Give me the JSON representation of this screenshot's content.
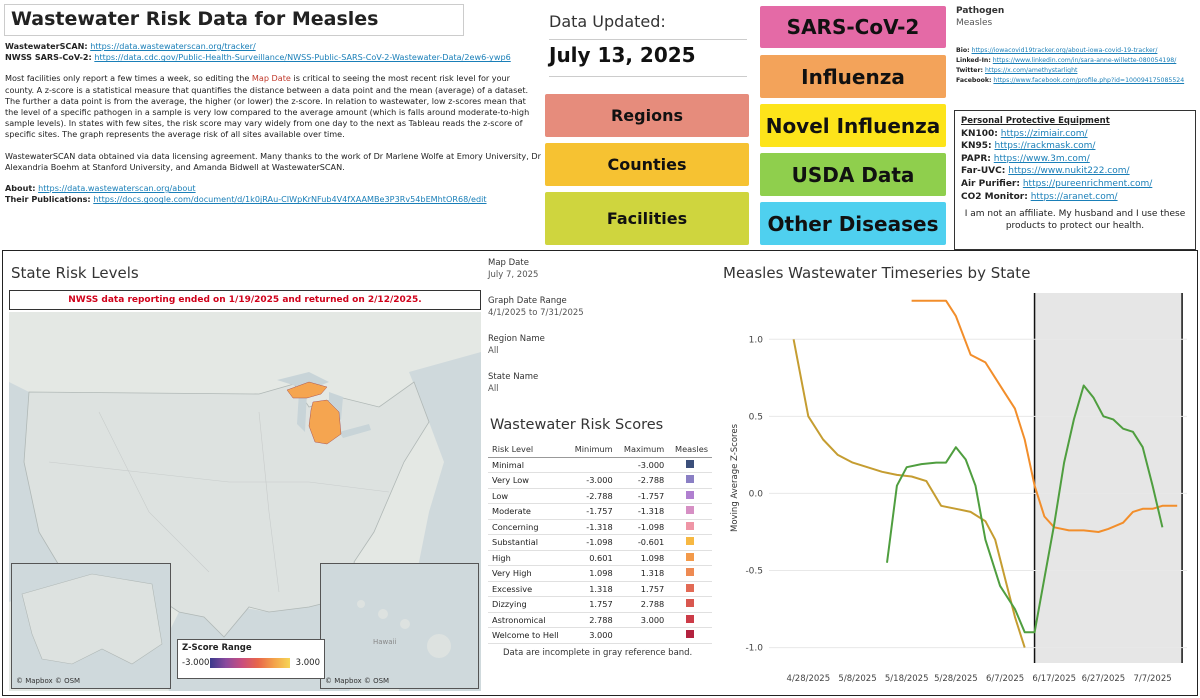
{
  "header": {
    "title": "Wastewater Risk Data for  Measles"
  },
  "links": {
    "wastewaterscan_label": "WastewaterSCAN:",
    "wastewaterscan_url": "https://data.wastewaterscan.org/tracker/",
    "nwss_label": "NWSS SARS-CoV-2:",
    "nwss_url": "https://data.cdc.gov/Public-Health-Surveillance/NWSS-Public-SARS-CoV-2-Wastewater-Data/2ew6-ywp6",
    "about_label": "About:",
    "about_url": "https://data.wastewaterscan.org/about",
    "pubs_label": "Their Publications:",
    "pubs_url": "https://docs.google.com/document/d/1k0jRAu-CIWpKrNFub4V4fXAAMBe3P3Rv54bEMhtOR68/edit"
  },
  "description": {
    "p1_pre": "Most facilities only report a few times a week, so editing the ",
    "p1_map_date": "Map Date",
    "p1_post": " is critical to seeing the most recent risk level for your county. A z-score is a statistical measure that quantifies the distance between a data point and the mean (average) of a dataset. The further a data point is from the average, the higher (or lower) the z-score. In relation to wastewater, low z-scores mean that the level of a specific pathogen in a sample is very low compared to the average amount (which is falls around moderate-to-high sample levels). In states with few sites, the risk score may vary widely from one day to the next as Tableau reads the z-score of specific sites. The graph represents the average risk of all sites available over time.",
    "p2": "WastewaterSCAN data obtained via data licensing agreement. Many thanks to the work of Dr Marlene Wolfe at Emory University, Dr Alexandria Boehm at Stanford University, and Amanda Bidwell at WastewaterSCAN."
  },
  "updated": {
    "label": "Data Updated:",
    "date": "July 13, 2025"
  },
  "nav_buttons": {
    "regions": "Regions",
    "counties": "Counties",
    "facilities": "Facilities",
    "sars": "SARS-CoV-2",
    "influenza": "Influenza",
    "novel_influenza": "Novel Influenza",
    "usda": "USDA Data",
    "other": "Other Diseases"
  },
  "colors": {
    "regions": "#e68c7c",
    "counties": "#f6c232",
    "facilities": "#cfd53e",
    "sars": "#e46aa6",
    "influenza": "#f3a35a",
    "novel_influenza": "#fde41a",
    "usda": "#8fcf4d",
    "other": "#4fd0ef",
    "michigan": "#f5a550",
    "orange_series": "#f28e2b",
    "gold_series": "#c59d31",
    "green_series": "#4f9e3f"
  },
  "pathogen": {
    "label": "Pathogen",
    "value": "Measles"
  },
  "socials": {
    "bio_label": "Bio:",
    "bio_url": "https://iowacovid19tracker.org/about-iowa-covid-19-tracker/",
    "linkedin_label": "Linked-In:",
    "linkedin_url": "https://www.linkedin.com/in/sara-anne-willette-080054198/",
    "twitter_label": "Twitter:",
    "twitter_url": "https://x.com/amethystarlight",
    "facebook_label": "Facebook:",
    "facebook_url": "https://www.facebook.com/profile.php?id=100094175085524"
  },
  "ppe": {
    "title": "Personal Protective Equipment",
    "items": [
      {
        "label": "KN100:",
        "url": "https://zimiair.com/"
      },
      {
        "label": "KN95:",
        "url": "https://rackmask.com/"
      },
      {
        "label": "PAPR:",
        "url": "https://www.3m.com/"
      },
      {
        "label": "Far-UVC:",
        "url": "https://www.nukit222.com/"
      },
      {
        "label": "Air Purifier:",
        "url": "https://pureenrichment.com/"
      },
      {
        "label": "CO2 Monitor:",
        "url": "https://aranet.com/"
      }
    ],
    "note": "I am not an affiliate. My husband and I use these products to protect our health."
  },
  "map": {
    "title": "State Risk Levels",
    "banner": "NWSS data reporting ended on 1/19/2025 and returned on 2/12/2025.",
    "attribution": "© Mapbox © OSM",
    "legend_title": "Z-Score Range",
    "legend_min": "-3.000",
    "legend_max": "3.000",
    "inset_label": "Hawaii"
  },
  "filters": [
    {
      "label": "Map Date",
      "value": "July 7, 2025"
    },
    {
      "label": "Graph Date Range",
      "value": "4/1/2025 to 7/31/2025"
    },
    {
      "label": "Region Name",
      "value": "All"
    },
    {
      "label": "State Name",
      "value": "All"
    }
  ],
  "scores": {
    "title": "Wastewater Risk Scores",
    "headers": [
      "Risk Level",
      "Minimum",
      "Maximum",
      "Measles"
    ],
    "rows": [
      {
        "level": "Minimal",
        "min": "",
        "max": "-3.000",
        "color": "#3b4f7a"
      },
      {
        "level": "Very Low",
        "min": "-3.000",
        "max": "-2.788",
        "color": "#8a7fc4"
      },
      {
        "level": "Low",
        "min": "-2.788",
        "max": "-1.757",
        "color": "#b07fd0"
      },
      {
        "level": "Moderate",
        "min": "-1.757",
        "max": "-1.318",
        "color": "#d68fc4"
      },
      {
        "level": "Concerning",
        "min": "-1.318",
        "max": "-1.098",
        "color": "#ef95a6"
      },
      {
        "level": "Substantial",
        "min": "-1.098",
        "max": "-0.601",
        "color": "#f7b842"
      },
      {
        "level": "High",
        "min": "0.601",
        "max": "1.098",
        "color": "#f39a4a"
      },
      {
        "level": "Very High",
        "min": "1.098",
        "max": "1.318",
        "color": "#ee8a52"
      },
      {
        "level": "Excessive",
        "min": "1.318",
        "max": "1.757",
        "color": "#e26a55"
      },
      {
        "level": "Dizzying",
        "min": "1.757",
        "max": "2.788",
        "color": "#d9574f"
      },
      {
        "level": "Astronomical",
        "min": "2.788",
        "max": "3.000",
        "color": "#cc3b47"
      },
      {
        "level": "Welcome to Hell",
        "min": "3.000",
        "max": "",
        "color": "#b3223f"
      }
    ],
    "note": "Data are incomplete in gray reference band."
  },
  "chart_data": {
    "type": "line",
    "title": "Measles Wastewater Timeseries by State",
    "xlabel": "",
    "ylabel": "Moving Average Z-Scores",
    "ylim": [
      -1.1,
      1.3
    ],
    "xlim": [
      "2025-04-20",
      "2025-07-14"
    ],
    "x_ticks": [
      "4/28/2025",
      "5/8/2025",
      "5/18/2025",
      "5/28/2025",
      "6/7/2025",
      "6/17/2025",
      "6/27/2025",
      "7/7/2025"
    ],
    "y_ticks": [
      1.0,
      0.5,
      0.0,
      -0.5,
      -1.0
    ],
    "y_tick_labels": [
      "1.0",
      "0.5",
      "0.0",
      "-0.5",
      "-1.0"
    ],
    "reference_band": {
      "start": "2025-06-13",
      "end": "2025-07-13"
    },
    "grid": true,
    "legend": "none",
    "series": [
      {
        "color": "#f28e2b",
        "points": [
          [
            "2025-05-19",
            1.25
          ],
          [
            "2025-05-22",
            1.25
          ],
          [
            "2025-05-25",
            1.25
          ],
          [
            "2025-05-26",
            1.25
          ],
          [
            "2025-05-28",
            1.15
          ],
          [
            "2025-05-31",
            0.9
          ],
          [
            "2025-06-03",
            0.85
          ],
          [
            "2025-06-05",
            0.75
          ],
          [
            "2025-06-07",
            0.65
          ],
          [
            "2025-06-09",
            0.55
          ],
          [
            "2025-06-11",
            0.35
          ],
          [
            "2025-06-13",
            0.05
          ],
          [
            "2025-06-15",
            -0.15
          ],
          [
            "2025-06-17",
            -0.22
          ],
          [
            "2025-06-20",
            -0.24
          ],
          [
            "2025-06-23",
            -0.24
          ],
          [
            "2025-06-26",
            -0.25
          ],
          [
            "2025-06-28",
            -0.23
          ],
          [
            "2025-07-01",
            -0.19
          ],
          [
            "2025-07-03",
            -0.12
          ],
          [
            "2025-07-05",
            -0.1
          ],
          [
            "2025-07-07",
            -0.1
          ],
          [
            "2025-07-09",
            -0.08
          ],
          [
            "2025-07-12",
            -0.08
          ]
        ]
      },
      {
        "color": "#c59d31",
        "points": [
          [
            "2025-04-25",
            1.0
          ],
          [
            "2025-04-28",
            0.5
          ],
          [
            "2025-05-01",
            0.35
          ],
          [
            "2025-05-04",
            0.25
          ],
          [
            "2025-05-07",
            0.2
          ],
          [
            "2025-05-10",
            0.17
          ],
          [
            "2025-05-13",
            0.14
          ],
          [
            "2025-05-16",
            0.12
          ],
          [
            "2025-05-19",
            0.11
          ],
          [
            "2025-05-22",
            0.08
          ],
          [
            "2025-05-25",
            -0.08
          ],
          [
            "2025-05-28",
            -0.1
          ],
          [
            "2025-05-31",
            -0.12
          ],
          [
            "2025-06-03",
            -0.18
          ],
          [
            "2025-06-05",
            -0.3
          ],
          [
            "2025-06-07",
            -0.55
          ],
          [
            "2025-06-09",
            -0.8
          ],
          [
            "2025-06-11",
            -1.0
          ]
        ]
      },
      {
        "color": "#4f9e3f",
        "points": [
          [
            "2025-05-14",
            -0.45
          ],
          [
            "2025-05-16",
            0.05
          ],
          [
            "2025-05-18",
            0.17
          ],
          [
            "2025-05-21",
            0.19
          ],
          [
            "2025-05-24",
            0.2
          ],
          [
            "2025-05-26",
            0.2
          ],
          [
            "2025-05-28",
            0.3
          ],
          [
            "2025-05-30",
            0.22
          ],
          [
            "2025-06-01",
            0.05
          ],
          [
            "2025-06-03",
            -0.3
          ],
          [
            "2025-06-06",
            -0.6
          ],
          [
            "2025-06-09",
            -0.75
          ],
          [
            "2025-06-11",
            -0.9
          ],
          [
            "2025-06-13",
            -0.9
          ],
          [
            "2025-06-15",
            -0.55
          ],
          [
            "2025-06-17",
            -0.2
          ],
          [
            "2025-06-19",
            0.2
          ],
          [
            "2025-06-21",
            0.48
          ],
          [
            "2025-06-23",
            0.7
          ],
          [
            "2025-06-25",
            0.62
          ],
          [
            "2025-06-27",
            0.5
          ],
          [
            "2025-06-29",
            0.48
          ],
          [
            "2025-07-01",
            0.42
          ],
          [
            "2025-07-03",
            0.4
          ],
          [
            "2025-07-05",
            0.3
          ],
          [
            "2025-07-07",
            0.05
          ],
          [
            "2025-07-09",
            -0.22
          ]
        ]
      }
    ]
  }
}
